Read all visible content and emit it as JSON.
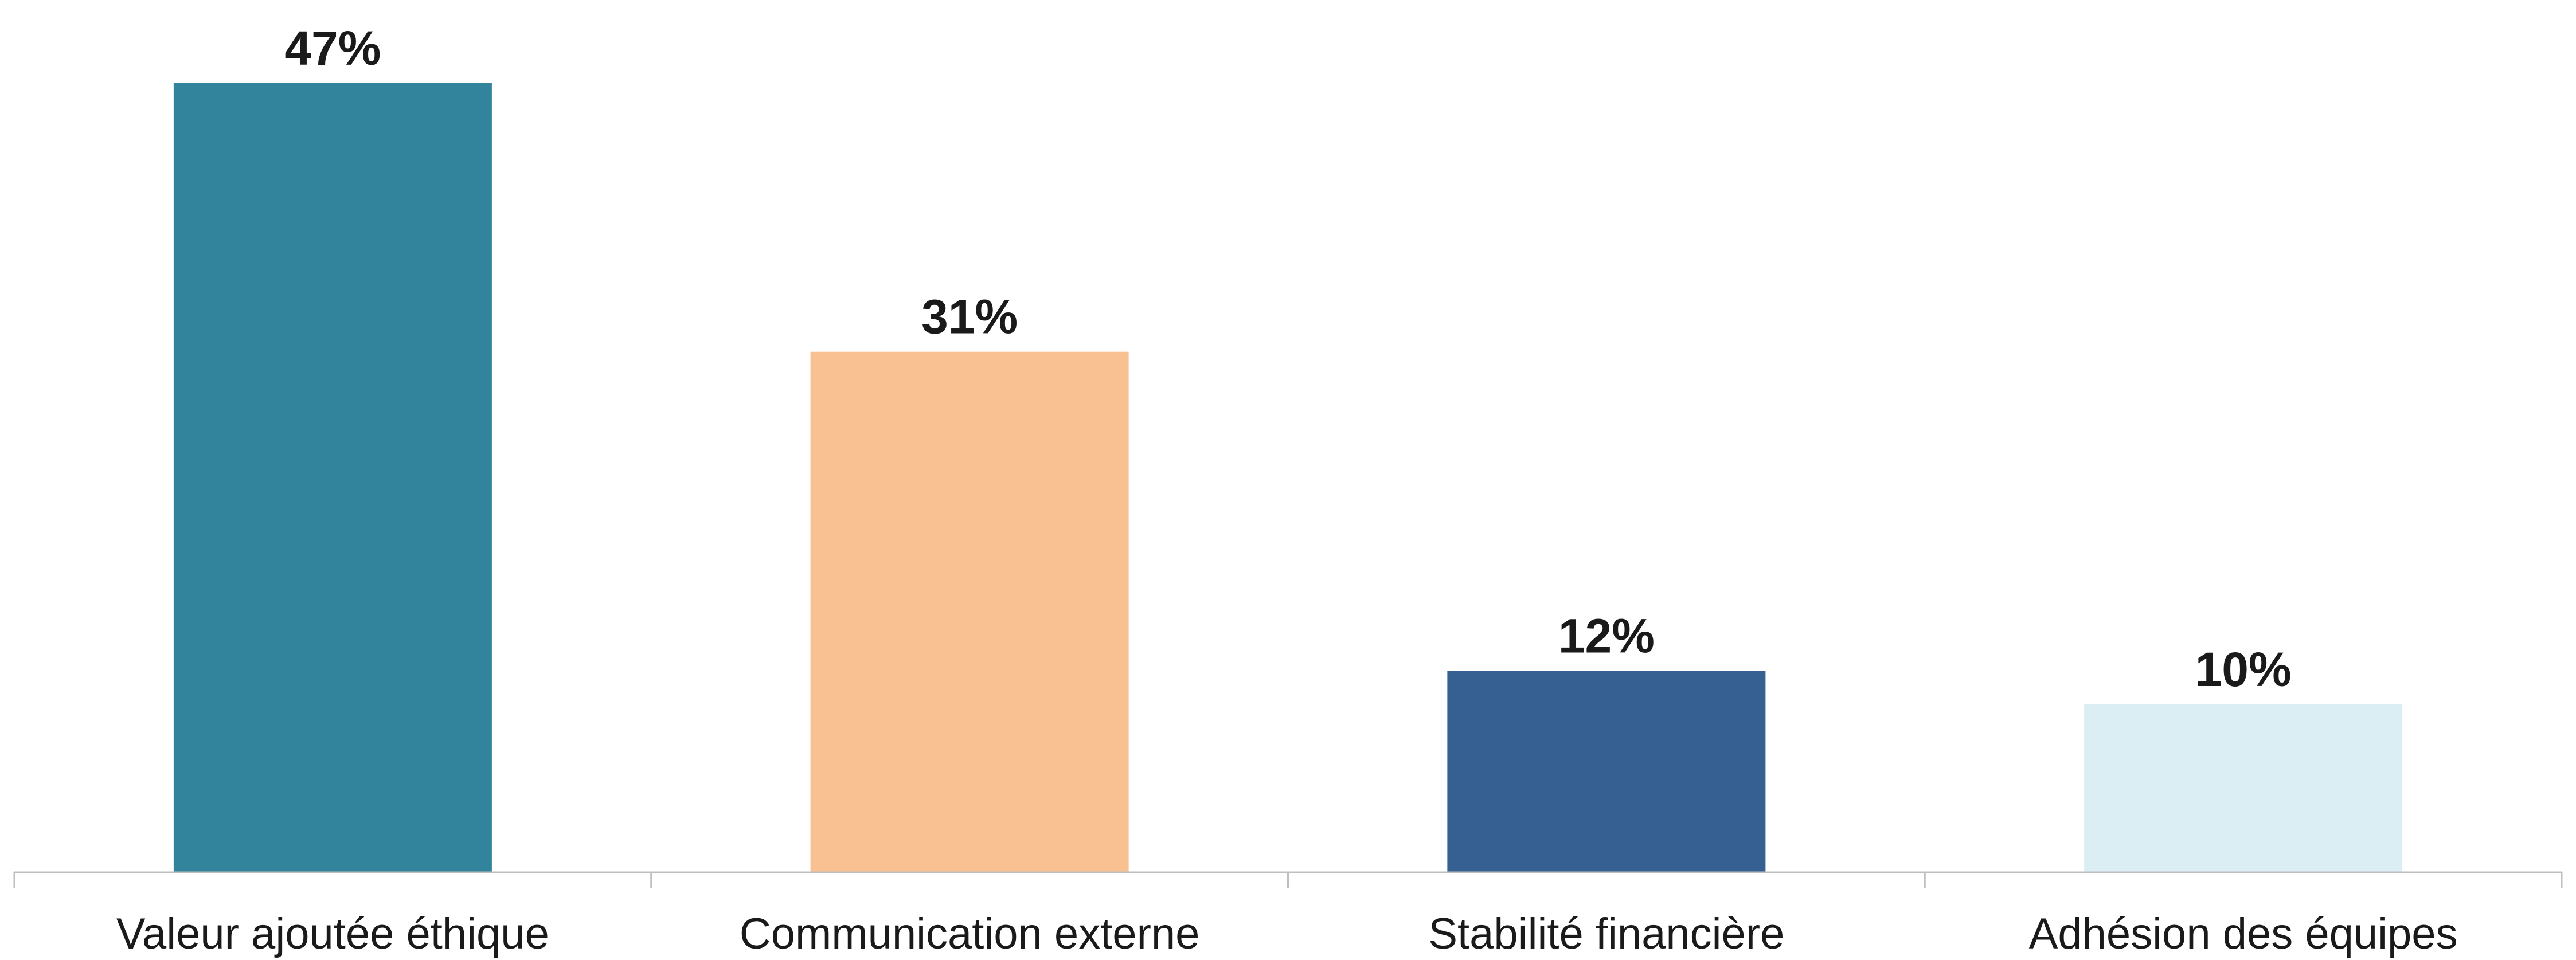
{
  "chart_data": {
    "type": "bar",
    "categories": [
      "Valeur ajoutée éthique",
      "Communication externe",
      "Stabilité financière",
      "Adhésion des équipes"
    ],
    "values": [
      47,
      31,
      12,
      10
    ],
    "data_labels": [
      "47%",
      "31%",
      "12%",
      "10%"
    ],
    "colors": [
      "#31849b",
      "#f9c091",
      "#366092",
      "#dbeef4"
    ],
    "title": "",
    "xlabel": "",
    "ylabel": "",
    "ylim": [
      0,
      50
    ],
    "grid": false,
    "legend": "none"
  }
}
